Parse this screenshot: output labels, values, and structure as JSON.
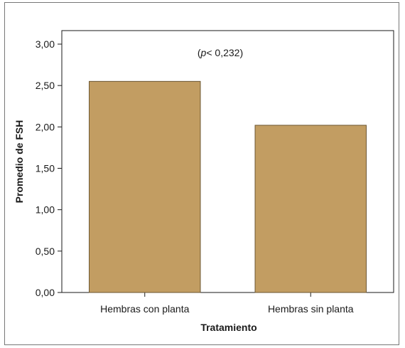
{
  "chart_data": {
    "type": "bar",
    "categories": [
      "Hembras con planta",
      "Hembras sin planta"
    ],
    "values": [
      2.55,
      2.02
    ],
    "ylabel": "Promedio de FSH",
    "xlabel": "Tratamiento",
    "ylim": [
      0,
      3.0
    ],
    "yticks": [
      0,
      0.5,
      1.0,
      1.5,
      2.0,
      2.5,
      3.0
    ],
    "ytick_labels": [
      "0,00",
      "0,50",
      "1,00",
      "1,50",
      "2,00",
      "2,50",
      "3,00"
    ],
    "annotation": {
      "italic": "p",
      "text": "< 0,232"
    },
    "grid": false,
    "bar_color": "#c29d62",
    "bar_edge": "#6b5632"
  }
}
